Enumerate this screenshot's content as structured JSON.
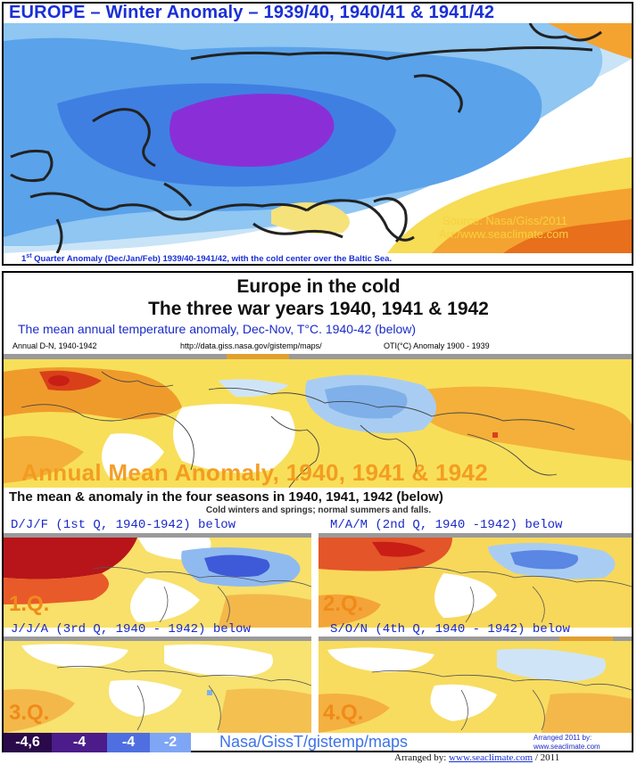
{
  "top_panel": {
    "title": "EUROPE – Winter Anomaly – 1939/40, 1940/41 & 1941/42",
    "source_line1": "Source: Nasa/Giss/2011",
    "source_line2": "Arr./www.seaclimate.com",
    "caption_sup": "st",
    "caption_pre": "1",
    "caption": " Quarter Anomaly (Dec/Jan/Feb) 1939/40-1941/42, with the cold center over the Baltic Sea."
  },
  "middle": {
    "heading1": "Europe in the cold",
    "heading2": "The three war years 1940, 1941 & 1942",
    "subheading": "The mean annual temperature anomaly, Dec-Nov, T°C. 1940-42 (below)",
    "map_header_left": "Annual D-N, 1940-1942",
    "map_header_mid": "http://data.giss.nasa.gov/gistemp/maps/",
    "map_header_right": "OTI(°C) Anomaly 1900 - 1939",
    "overlay": "Annual Mean Anomaly, 1940, 1941 & 1942"
  },
  "seasons_header": {
    "line1": "The mean & anomaly in the four seasons in 1940, 1941, 1942 (below)",
    "line2": "Cold winters and springs; normal summers and falls."
  },
  "seasons": [
    {
      "title": "D/J/F (1st Q, 1940-1942) below",
      "label": "1.Q."
    },
    {
      "title": "M/A/M (2nd Q, 1940 -1942) below",
      "label": "2.Q."
    },
    {
      "title": "J/J/A (3rd Q, 1940 - 1942) below",
      "label": "3.Q."
    },
    {
      "title": "S/O/N (4th Q, 1940 - 1942) below",
      "label": "4.Q."
    }
  ],
  "legend": {
    "values": [
      "-4,6",
      "-4",
      "-4",
      "-2"
    ],
    "colors": [
      "#2a0a4a",
      "#4b1c8a",
      "#4f6fe0",
      "#7fa6f5"
    ],
    "caption": "Nasa/GissT/gistemp/maps",
    "arranged_line1": "Arranged 2011 by:",
    "arranged_line2": "www.seaclimate.com"
  },
  "footer": {
    "prefix": "Arranged by: ",
    "link": "www.seaclimate.com",
    "suffix": " / 2011"
  },
  "colors": {
    "title_blue": "#1a2fd6",
    "source_gold": "#f7d23c",
    "overlay_orange": "#f39a1e",
    "season_title_blue": "#1b2ac8",
    "label_orange": "#f08a1a"
  }
}
